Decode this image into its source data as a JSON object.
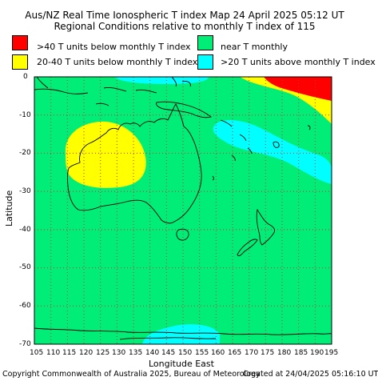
{
  "title_line1": "Aus/NZ Real Time Ionospheric T index Map 24 April 2025 05:12 UT",
  "title_line2": "Regional Conditions relative to monthly T index of 115",
  "legend": [
    {
      "label": ">40 T units below monthly T index",
      "color": "#ff0000"
    },
    {
      "label": "near T monthly",
      "color": "#00ee77"
    },
    {
      "label": "20-40 T units below monthly T index",
      "color": "#ffff00"
    },
    {
      "label": ">20 T units above monthly T index",
      "color": "#00ffff"
    }
  ],
  "map": {
    "xlabel": "Longitude East",
    "ylabel": "Latitude",
    "x_ticks": [
      "105",
      "110",
      "115",
      "120",
      "125",
      "130",
      "135",
      "140",
      "145",
      "150",
      "155",
      "160",
      "165",
      "170",
      "175",
      "180",
      "185",
      "190",
      "195"
    ],
    "y_ticks": [
      "0",
      "-10",
      "-20",
      "-30",
      "-40",
      "-50",
      "-60",
      "-70"
    ],
    "lon_range": [
      105,
      195
    ],
    "lat_range": [
      -70,
      0
    ],
    "background_color": "#00ee77",
    "grid_color": "#cc3333"
  },
  "footer_left": "Copyright Commonwealth of Australia 2025, Bureau of Meteorology",
  "footer_right": "Created at 24/04/2025 05:16:10 UT"
}
